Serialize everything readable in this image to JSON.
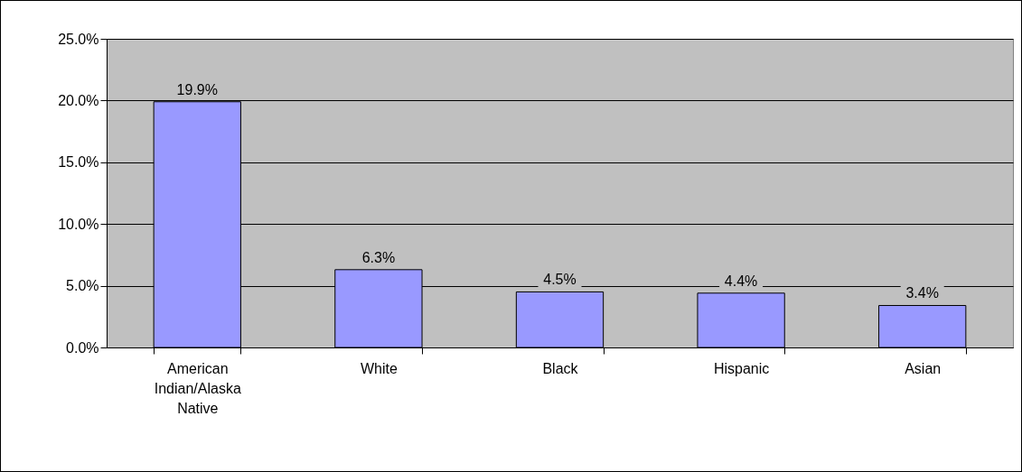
{
  "chart_data": {
    "type": "bar",
    "categories": [
      "American Indian/Alaska Native",
      "White",
      "Black",
      "Hispanic",
      "Asian"
    ],
    "values": [
      19.9,
      6.3,
      4.5,
      4.4,
      3.4
    ],
    "value_labels": [
      "19.9%",
      "6.3%",
      "4.5%",
      "4.4%",
      "3.4%"
    ],
    "color": "#9999ff",
    "ylim": [
      0,
      25
    ],
    "yticks": [
      {
        "value": 0,
        "label": "0.0%"
      },
      {
        "value": 5,
        "label": "5.0%"
      },
      {
        "value": 10,
        "label": "10.0%"
      },
      {
        "value": 15,
        "label": "15.0%"
      },
      {
        "value": 20,
        "label": "20.0%"
      },
      {
        "value": 25,
        "label": "25.0%"
      }
    ],
    "grid": true
  }
}
